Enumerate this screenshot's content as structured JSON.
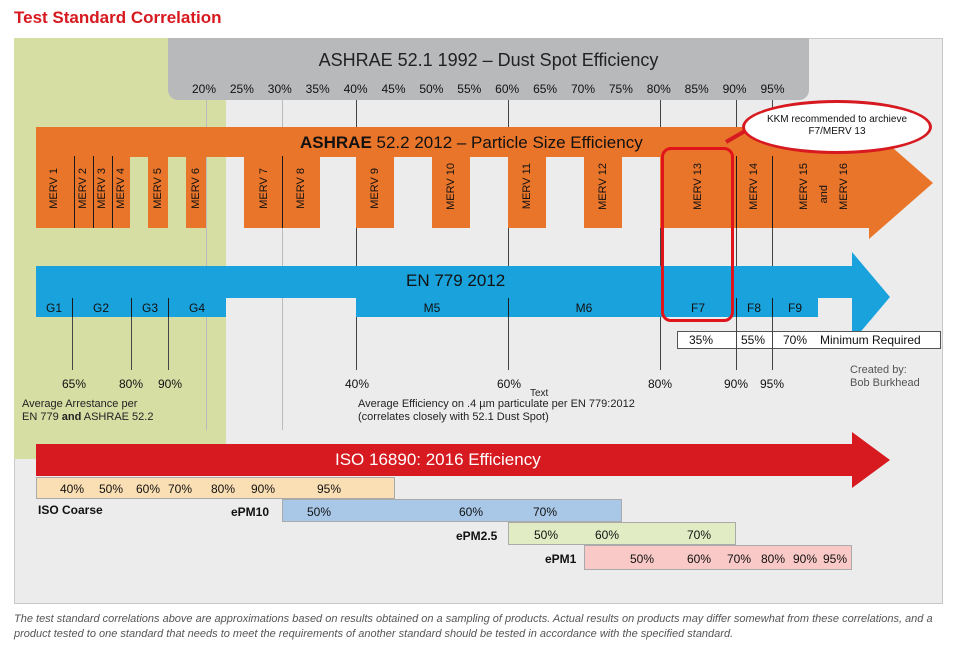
{
  "title": "Test Standard Correlation",
  "ashrae521": {
    "title": "ASHRAE 52.1 1992 – Dust Spot Efficiency",
    "ticks": [
      "20%",
      "25%",
      "30%",
      "35%",
      "40%",
      "45%",
      "50%",
      "55%",
      "60%",
      "65%",
      "70%",
      "75%",
      "80%",
      "85%",
      "90%",
      "95%"
    ]
  },
  "ashrae522": {
    "title_bold": "ASHRAE",
    "title_rest": " 52.2 2012 – Particle Size Efficiency",
    "merv": [
      "MERV 1",
      "MERV 2",
      "MERV 3",
      "MERV 4",
      "MERV 5",
      "MERV 6",
      "MERV 7",
      "MERV 8",
      "MERV 9",
      "MERV 10",
      "MERV 11",
      "MERV 12",
      "MERV 13",
      "MERV 14",
      "MERV 15",
      "and",
      "MERV 16"
    ]
  },
  "callout": {
    "line1": "KKM recommended to archieve",
    "line2": "F7/MERV 13"
  },
  "en779": {
    "title": "EN 779 2012",
    "classes": [
      "G1",
      "G2",
      "G3",
      "G4",
      "M5",
      "M6",
      "F7",
      "F8",
      "F9"
    ],
    "minimum": {
      "f7": "35%",
      "f8": "55%",
      "f9": "70%",
      "label": "Minimum Required"
    }
  },
  "arrestance": {
    "ticks": [
      "65%",
      "80%",
      "90%"
    ],
    "line1": "Average Arrestance per",
    "line2a": "EN 779 ",
    "line2b": "and",
    "line2c": " ASHRAE 52.2"
  },
  "efficiency": {
    "ticks": [
      "40%",
      "60%",
      "80%",
      "90%",
      "95%"
    ],
    "tag": "Text",
    "line1": "Average Efficiency on .4 µm particulate per EN 779:2012",
    "line2": "(correlates closely with 52.1 Dust Spot)"
  },
  "credit": {
    "line1": "Created by:",
    "line2": "Bob Burkhead"
  },
  "iso16890": {
    "title": "ISO 16890: 2016 Efficiency",
    "coarse": {
      "name": "ISO Coarse",
      "values": [
        "40%",
        "50%",
        "60%",
        "70%",
        "80%",
        "90%",
        "95%"
      ]
    },
    "epm10": {
      "name": "ePM10",
      "values": [
        "50%",
        "60%",
        "70%"
      ]
    },
    "epm25": {
      "name": "ePM2.5",
      "values": [
        "50%",
        "60%",
        "70%"
      ]
    },
    "epm1": {
      "name": "ePM1",
      "values": [
        "50%",
        "60%",
        "70%",
        "80%",
        "90%",
        "95%"
      ]
    }
  },
  "colors": {
    "orange": "#e9752a",
    "blue": "#1aa2dc",
    "red": "#d71920",
    "green": "#d6dea4",
    "gray": "#b8b9bb"
  },
  "footer": "The test standard correlations above are approximations based on results obtained on a sampling of products. Actual results on products may differ somewhat from these correlations, and a product tested to one standard that needs to meet the requirements of another standard should be tested in accordance with the specified standard."
}
